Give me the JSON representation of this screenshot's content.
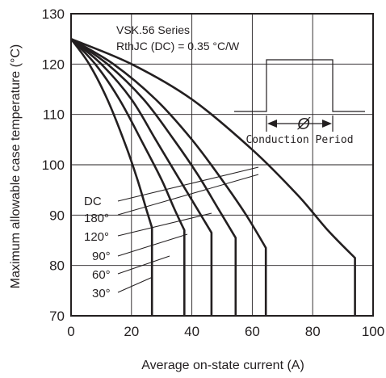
{
  "chart_data": {
    "type": "line",
    "title": "",
    "xlabel": "Average on-state current (A)",
    "ylabel": "Maximum allowable case temperature (°C)",
    "xlim": [
      0,
      100
    ],
    "ylim": [
      70,
      130
    ],
    "x_ticks": [
      "0",
      "20",
      "40",
      "60",
      "80",
      "100"
    ],
    "y_ticks": [
      "70",
      "80",
      "90",
      "100",
      "110",
      "120",
      "130"
    ],
    "grid": true,
    "annotations": [
      "VSK.56 Series",
      "RthJC (DC) = 0.35 °C/W"
    ],
    "inset": {
      "symbol": "Ø",
      "label": "Conduction Period"
    },
    "series": [
      {
        "name": "30°",
        "x": [
          0,
          6,
          12,
          18,
          22,
          25,
          26.8,
          26.8
        ],
        "y": [
          125,
          120,
          113,
          104,
          97,
          91,
          87.5,
          70
        ]
      },
      {
        "name": "60°",
        "x": [
          0,
          8,
          16,
          24,
          30,
          34,
          37.5,
          37.5
        ],
        "y": [
          125,
          120,
          113,
          104,
          97,
          91.5,
          87,
          70
        ]
      },
      {
        "name": "90°",
        "x": [
          0,
          10,
          20,
          28,
          36,
          42,
          46.5,
          46.5
        ],
        "y": [
          125,
          120,
          113,
          105,
          97,
          91,
          86.5,
          70
        ]
      },
      {
        "name": "120°",
        "x": [
          0,
          12,
          24,
          34,
          42,
          48.5,
          54.5,
          54.5
        ],
        "y": [
          125,
          120,
          113,
          105,
          98,
          91.5,
          85.5,
          70
        ]
      },
      {
        "name": "180°",
        "x": [
          0,
          14,
          28,
          40,
          50,
          58,
          64.5,
          64.5
        ],
        "y": [
          125,
          120,
          113,
          105,
          97,
          90,
          83.5,
          70
        ]
      },
      {
        "name": "DC",
        "x": [
          0,
          20,
          40,
          60,
          75,
          85,
          94,
          94
        ],
        "y": [
          125,
          120,
          113,
          103,
          94,
          87,
          81.5,
          70
        ]
      }
    ]
  }
}
